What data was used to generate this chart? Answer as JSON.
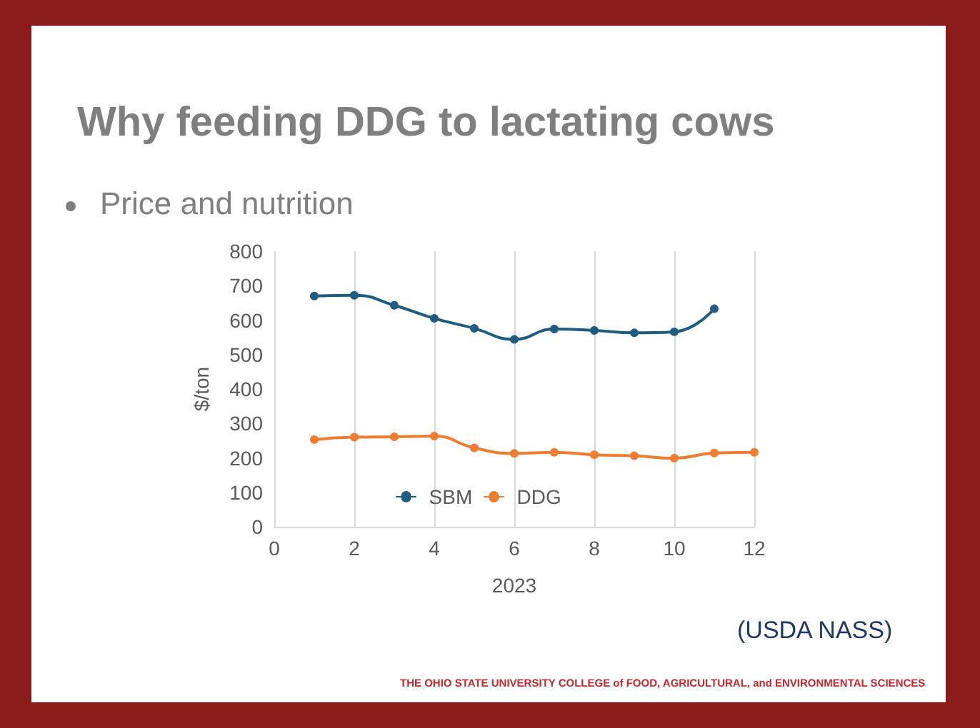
{
  "chart_data": {
    "type": "line",
    "title": "Why feeding DDG to lactating cows",
    "subtitle": "Price and nutrition",
    "xlabel": "2023",
    "ylabel": "$/ton",
    "x": [
      1,
      2,
      3,
      4,
      5,
      6,
      7,
      8,
      9,
      10,
      11,
      12
    ],
    "series": [
      {
        "name": "SBM",
        "color": "#1f5c7f",
        "values": [
          670,
          672,
          643,
          605,
          576,
          544,
          574,
          570,
          563,
          566,
          633,
          null
        ]
      },
      {
        "name": "DDG",
        "color": "#ed7d31",
        "values": [
          253,
          260,
          261,
          263,
          229,
          213,
          216,
          209,
          206,
          199,
          214,
          216
        ]
      }
    ],
    "xlim": [
      0,
      12
    ],
    "xticks": [
      0,
      2,
      4,
      6,
      8,
      10,
      12
    ],
    "ylim": [
      0,
      800
    ],
    "yticks": [
      0,
      100,
      200,
      300,
      400,
      500,
      600,
      700,
      800
    ],
    "grid": "x",
    "legend": "bottom",
    "marker": "circle",
    "line_style": "solid",
    "annotations": [
      "(USDA NASS)",
      "THE OHIO STATE UNIVERSITY COLLEGE of FOOD, AGRICULTURAL, and ENVIRONMENTAL SCIENCES"
    ]
  }
}
